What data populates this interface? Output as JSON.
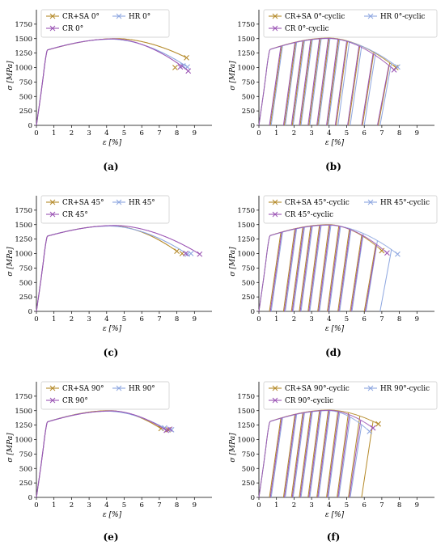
{
  "captions": [
    "(a)",
    "(b)",
    "(c)",
    "(d)",
    "(e)",
    "(f)"
  ],
  "colors": {
    "CR+SA": "#b58a2a",
    "HR": "#8da6e0",
    "CR": "#9b55b5"
  },
  "chart_data": [
    {
      "type": "line",
      "xlabel": "ε [%]",
      "ylabel": "σ [MPa]",
      "xlim": [
        0,
        10
      ],
      "ylim": [
        0,
        2000
      ],
      "xticks": [
        "0",
        "1",
        "2",
        "3",
        "4",
        "5",
        "6",
        "7",
        "8",
        "9"
      ],
      "yticks": [
        "0",
        "250",
        "500",
        "750",
        "1000",
        "1250",
        "1500",
        "1750"
      ],
      "legend": [
        "CR+SA 0°",
        "HR 0°",
        "CR 0°"
      ],
      "series": [
        {
          "name": "CR+SA 0°",
          "series_key": "CR+SA",
          "peak": 1500,
          "eps_peak": 4.6,
          "end": [
            8.55,
            1170
          ],
          "ends": [
            [
              7.9,
              1000
            ]
          ]
        },
        {
          "name": "HR 0°",
          "series_key": "HR",
          "peak": 1490,
          "eps_peak": 4.3,
          "end": [
            8.6,
            1010
          ],
          "ends": [
            [
              8.35,
              1030
            ]
          ]
        },
        {
          "name": "CR 0°",
          "series_key": "CR",
          "peak": 1495,
          "eps_peak": 4.4,
          "end": [
            8.65,
            940
          ],
          "ends": [
            [
              8.2,
              1010
            ]
          ]
        }
      ]
    },
    {
      "type": "line",
      "xlabel": "ε [%]",
      "ylabel": "σ [MPa]",
      "xlim": [
        0,
        10
      ],
      "ylim": [
        0,
        2000
      ],
      "xticks": [
        "0",
        "1",
        "2",
        "3",
        "4",
        "5",
        "6",
        "7",
        "8",
        "9"
      ],
      "yticks": [
        "0",
        "250",
        "500",
        "750",
        "1000",
        "1250",
        "1500",
        "1750"
      ],
      "legend": [
        "CR+SA 0°-cyclic",
        "HR 0°-cyclic",
        "CR 0°-cyclic"
      ],
      "series": [
        {
          "name": "CR+SA 0°-cyclic",
          "series_key": "CR+SA",
          "peak": 1510,
          "eps_peak": 4.0,
          "end": [
            7.8,
            1000
          ],
          "zeros": [
            0.65,
            1.45,
            1.9,
            2.35,
            2.85,
            3.35,
            3.9,
            4.4,
            5.1,
            5.9,
            6.8
          ]
        },
        {
          "name": "HR 0°-cyclic",
          "series_key": "HR",
          "peak": 1500,
          "eps_peak": 4.0,
          "end": [
            7.9,
            1010
          ],
          "zeros": [
            0.7,
            1.5,
            1.95,
            2.4,
            2.9,
            3.4,
            3.95,
            4.5,
            5.2,
            6.0,
            6.9
          ]
        },
        {
          "name": "CR 0°-cyclic",
          "series_key": "CR",
          "peak": 1505,
          "eps_peak": 4.0,
          "end": [
            7.7,
            960
          ],
          "zeros": [
            0.6,
            1.4,
            1.85,
            2.3,
            2.8,
            3.3,
            3.85,
            4.35,
            5.05,
            5.85,
            6.75
          ]
        }
      ]
    },
    {
      "type": "line",
      "xlabel": "ε [%]",
      "ylabel": "σ [MPa]",
      "xlim": [
        0,
        10
      ],
      "ylim": [
        0,
        2000
      ],
      "xticks": [
        "0",
        "1",
        "2",
        "3",
        "4",
        "5",
        "6",
        "7",
        "8",
        "9"
      ],
      "yticks": [
        "0",
        "250",
        "500",
        "750",
        "1000",
        "1250",
        "1500",
        "1750"
      ],
      "legend": [
        "CR+SA 45°",
        "HR 45°",
        "CR 45°"
      ],
      "series": [
        {
          "name": "CR+SA 45°",
          "series_key": "CR+SA",
          "peak": 1480,
          "eps_peak": 4.3,
          "end": [
            8.0,
            1040
          ],
          "ends": [
            [
              8.3,
              1000
            ]
          ]
        },
        {
          "name": "HR 45°",
          "series_key": "HR",
          "peak": 1475,
          "eps_peak": 4.2,
          "end": [
            8.6,
            990
          ],
          "ends": [
            [
              8.8,
              1000
            ]
          ]
        },
        {
          "name": "CR 45°",
          "series_key": "CR",
          "peak": 1485,
          "eps_peak": 4.5,
          "end": [
            9.3,
            990
          ],
          "ends": [
            [
              8.5,
              1000
            ]
          ]
        }
      ]
    },
    {
      "type": "line",
      "xlabel": "ε [%]",
      "ylabel": "σ [MPa]",
      "xlim": [
        0,
        10
      ],
      "ylim": [
        0,
        2000
      ],
      "xticks": [
        "0",
        "1",
        "2",
        "3",
        "4",
        "5",
        "6",
        "7",
        "8",
        "9"
      ],
      "yticks": [
        "0",
        "250",
        "500",
        "750",
        "1000",
        "1250",
        "1500",
        "1750"
      ],
      "legend": [
        "CR+SA 45°-cyclic",
        "HR 45°-cyclic",
        "CR 45°-cyclic"
      ],
      "series": [
        {
          "name": "CR+SA 45°-cyclic",
          "series_key": "CR+SA",
          "peak": 1500,
          "eps_peak": 4.0,
          "end": [
            7.0,
            1050
          ],
          "zeros": [
            0.6,
            1.4,
            1.85,
            2.3,
            2.8,
            3.35,
            3.9,
            4.5,
            5.2,
            6.0
          ]
        },
        {
          "name": "HR 45°-cyclic",
          "series_key": "HR",
          "peak": 1490,
          "eps_peak": 4.0,
          "end": [
            7.9,
            990
          ],
          "zeros": [
            0.7,
            1.5,
            1.95,
            2.4,
            2.9,
            3.45,
            4.0,
            4.6,
            5.3,
            6.1,
            6.9
          ]
        },
        {
          "name": "CR 45°-cyclic",
          "series_key": "CR",
          "peak": 1495,
          "eps_peak": 4.0,
          "end": [
            7.3,
            1010
          ],
          "zeros": [
            0.65,
            1.45,
            1.9,
            2.35,
            2.85,
            3.4,
            3.95,
            4.55,
            5.25,
            6.05
          ]
        }
      ]
    },
    {
      "type": "line",
      "xlabel": "ε [%]",
      "ylabel": "σ [MPa]",
      "xlim": [
        0,
        10
      ],
      "ylim": [
        0,
        2000
      ],
      "xticks": [
        "0",
        "1",
        "2",
        "3",
        "4",
        "5",
        "6",
        "7",
        "8",
        "9"
      ],
      "yticks": [
        "0",
        "250",
        "500",
        "750",
        "1000",
        "1250",
        "1500",
        "1750"
      ],
      "legend": [
        "CR+SA 90°",
        "HR 90°",
        "CR 90°"
      ],
      "series": [
        {
          "name": "CR+SA 90°",
          "series_key": "CR+SA",
          "peak": 1500,
          "eps_peak": 4.2,
          "end": [
            7.1,
            1190
          ],
          "ends": [
            [
              7.5,
              1170
            ]
          ]
        },
        {
          "name": "HR 90°",
          "series_key": "HR",
          "peak": 1490,
          "eps_peak": 4.1,
          "end": [
            7.3,
            1200
          ],
          "ends": [
            [
              7.7,
              1170
            ]
          ]
        },
        {
          "name": "CR 90°",
          "series_key": "CR",
          "peak": 1495,
          "eps_peak": 4.3,
          "end": [
            7.4,
            1160
          ],
          "ends": [
            [
              7.6,
              1180
            ]
          ]
        }
      ]
    },
    {
      "type": "line",
      "xlabel": "ε [%]",
      "ylabel": "σ [MPa]",
      "xlim": [
        0,
        10
      ],
      "ylim": [
        0,
        2000
      ],
      "xticks": [
        "0",
        "1",
        "2",
        "3",
        "4",
        "5",
        "6",
        "7",
        "8",
        "9"
      ],
      "yticks": [
        "0",
        "250",
        "500",
        "750",
        "1000",
        "1250",
        "1500",
        "1750"
      ],
      "legend": [
        "CR+SA 90°-cyclic",
        "HR 90°-cyclic",
        "CR 90°-cyclic"
      ],
      "series": [
        {
          "name": "CR+SA 90°-cyclic",
          "series_key": "CR+SA",
          "peak": 1510,
          "eps_peak": 4.0,
          "end": [
            6.8,
            1270
          ],
          "zeros": [
            0.6,
            1.4,
            1.85,
            2.3,
            2.8,
            3.3,
            3.85,
            4.45,
            5.1,
            5.85
          ]
        },
        {
          "name": "HR 90°-cyclic",
          "series_key": "HR",
          "peak": 1500,
          "eps_peak": 4.0,
          "end": [
            6.3,
            1140
          ],
          "zeros": [
            0.7,
            1.5,
            1.95,
            2.4,
            2.9,
            3.4,
            3.95,
            4.55,
            5.2
          ]
        },
        {
          "name": "CR 90°-cyclic",
          "series_key": "CR",
          "peak": 1505,
          "eps_peak": 4.0,
          "end": [
            6.5,
            1200
          ],
          "zeros": [
            0.65,
            1.45,
            1.9,
            2.35,
            2.85,
            3.35,
            3.9,
            4.5,
            5.15,
            5.9
          ]
        }
      ]
    }
  ]
}
